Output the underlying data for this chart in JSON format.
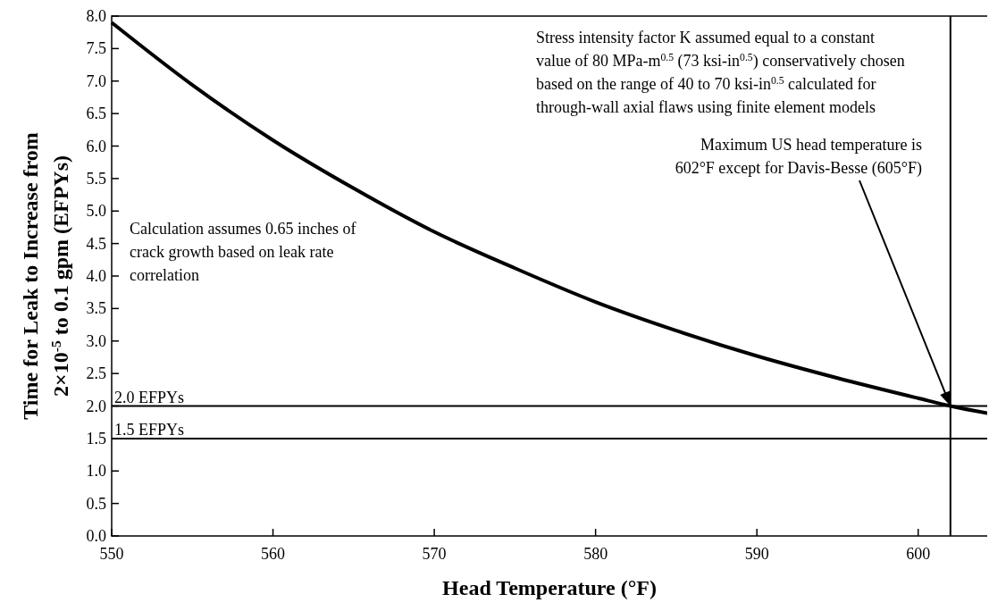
{
  "chart_data": {
    "type": "line",
    "xlabel": "Head Temperature (°F)",
    "ylabel": "Time for Leak to Increase from\n2×10$^{-5}$ to 0.1 gpm (EFPYs)",
    "x": [
      550,
      555,
      560,
      565,
      570,
      575,
      580,
      585,
      590,
      595,
      600,
      602,
      605
    ],
    "series": [
      {
        "color": "#000000",
        "values": [
          7.9,
          6.94,
          6.09,
          5.35,
          4.68,
          4.12,
          3.6,
          3.16,
          2.77,
          2.43,
          2.12,
          2.0,
          1.86
        ]
      }
    ],
    "xlim": [
      550,
      605
    ],
    "xticks": [
      550,
      560,
      570,
      580,
      590,
      600
    ],
    "ylim": [
      0,
      8
    ],
    "yticks": [
      {
        "value": 0,
        "label": "0.0"
      },
      {
        "value": 0.5,
        "label": "0.5"
      },
      {
        "value": 1,
        "label": "1.0"
      },
      {
        "value": 1.5,
        "label": "1.5"
      },
      {
        "value": 2,
        "label": "2.0"
      },
      {
        "value": 2.5,
        "label": "2.5"
      },
      {
        "value": 3,
        "label": "3.0"
      },
      {
        "value": 3.5,
        "label": "3.5"
      },
      {
        "value": 4,
        "label": "4.0"
      },
      {
        "value": 4.5,
        "label": "4.5"
      },
      {
        "value": 5,
        "label": "5.0"
      },
      {
        "value": 5.5,
        "label": "5.5"
      },
      {
        "value": 6,
        "label": "6.0"
      },
      {
        "value": 6.5,
        "label": "6.5"
      },
      {
        "value": 7,
        "label": "7.0"
      },
      {
        "value": 7.5,
        "label": "7.5"
      },
      {
        "value": 8,
        "label": "8.0"
      }
    ],
    "ref_lines": [
      {
        "axis": "y",
        "value": 2.0,
        "label": "2.0 EFPYs"
      },
      {
        "axis": "y",
        "value": 1.5,
        "label": "1.5 EFPYs"
      },
      {
        "axis": "x",
        "value": 602
      }
    ],
    "annotations": [
      "Stress intensity factor K assumed equal to a constant\nvalue of 80 MPa-m$^{0.5}$ (73 ksi-in$^{0.5}$) conservatively chosen\nbased on the range of 40 to 70 ksi-in$^{0.5}$ calculated for\nthrough-wall axial flaws using finite element models",
      "Calculation assumes 0.65 inches of\ncrack growth based on leak rate\ncorrelation",
      "Maximum US head temperature is\n602°F except for Davis-Besse (605°F)"
    ],
    "grid": false,
    "marker": "none",
    "line_style": "solid"
  }
}
